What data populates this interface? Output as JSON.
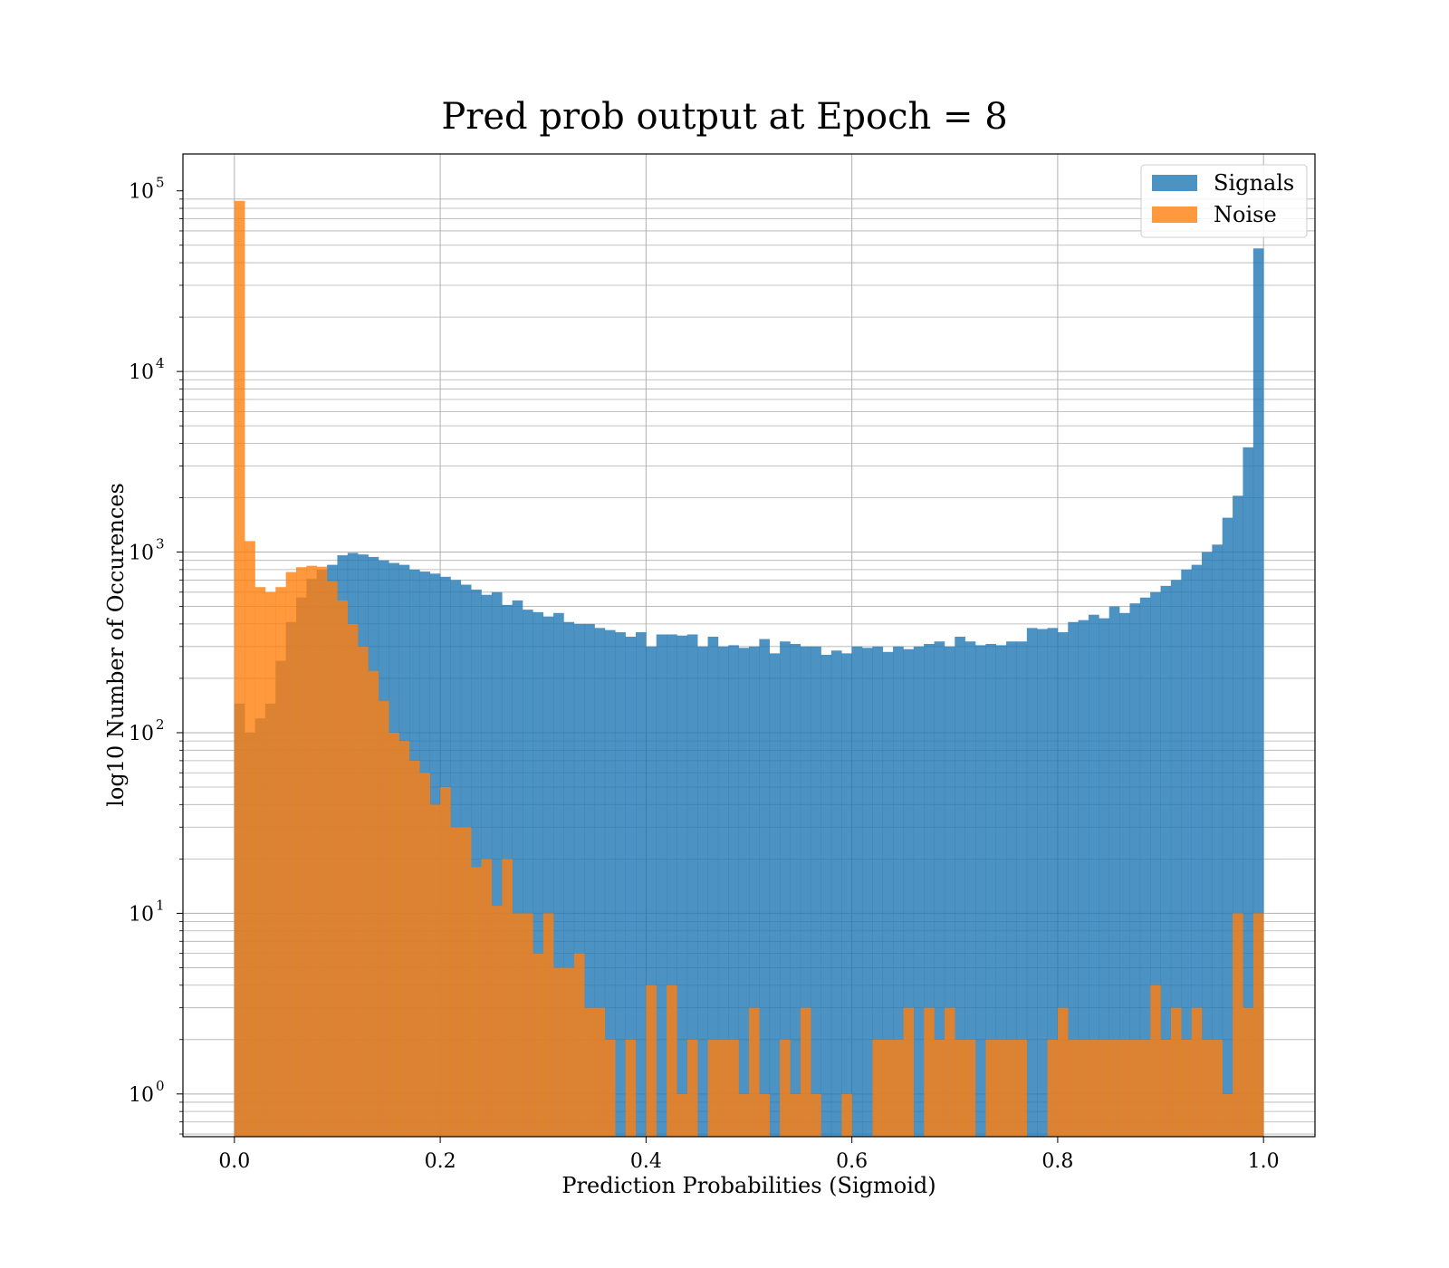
{
  "chart_data": {
    "type": "bar",
    "title": "Pred prob output at Epoch = 8",
    "xlabel": "Prediction Probabilities (Sigmoid)",
    "ylabel": "log10 Number of Occurences",
    "xlim": [
      -0.05,
      1.05
    ],
    "ylim": [
      0.58,
      160000
    ],
    "yscale": "log",
    "grid": true,
    "bins": 100,
    "bin_range": [
      0,
      1
    ],
    "legend_position": "top-right",
    "x_ticks": [
      "0.0",
      "0.2",
      "0.4",
      "0.6",
      "0.8",
      "1.0"
    ],
    "y_ticks": [
      {
        "base": "10",
        "exp": "0"
      },
      {
        "base": "10",
        "exp": "1"
      },
      {
        "base": "10",
        "exp": "2"
      },
      {
        "base": "10",
        "exp": "3"
      },
      {
        "base": "10",
        "exp": "4"
      },
      {
        "base": "10",
        "exp": "5"
      }
    ],
    "colors": {
      "signals": "#1f77b4",
      "noise": "#ff7f0e"
    },
    "series": [
      {
        "name": "Signals",
        "values": [
          145,
          100,
          120,
          145,
          250,
          410,
          560,
          710,
          800,
          850,
          960,
          990,
          970,
          940,
          900,
          870,
          850,
          800,
          780,
          760,
          730,
          700,
          660,
          620,
          580,
          600,
          510,
          540,
          480,
          465,
          440,
          460,
          410,
          400,
          400,
          380,
          370,
          360,
          340,
          360,
          300,
          350,
          350,
          345,
          350,
          300,
          340,
          300,
          305,
          295,
          300,
          330,
          275,
          320,
          310,
          300,
          300,
          270,
          285,
          275,
          300,
          295,
          300,
          280,
          300,
          290,
          300,
          310,
          320,
          300,
          340,
          320,
          305,
          310,
          305,
          320,
          320,
          380,
          375,
          380,
          360,
          410,
          420,
          450,
          430,
          500,
          460,
          520,
          560,
          600,
          650,
          700,
          800,
          850,
          1000,
          1100,
          1550,
          2050,
          3800,
          48000
        ]
      },
      {
        "name": "Noise",
        "values": [
          88000,
          1150,
          640,
          600,
          640,
          775,
          825,
          840,
          830,
          690,
          540,
          400,
          300,
          220,
          150,
          100,
          90,
          70,
          60,
          40,
          50,
          30,
          30,
          18,
          20,
          11,
          20,
          10,
          10,
          6,
          10,
          5,
          5,
          6,
          3,
          3,
          2,
          0,
          2,
          0,
          4,
          0,
          4,
          1,
          2,
          0,
          2,
          2,
          2,
          1,
          3,
          1,
          0,
          2,
          1,
          3,
          1,
          0,
          0,
          1,
          0,
          0,
          2,
          2,
          2,
          3,
          0,
          3,
          2,
          3,
          2,
          2,
          0,
          2,
          2,
          2,
          2,
          0,
          0,
          2,
          3,
          2,
          2,
          2,
          2,
          2,
          2,
          2,
          2,
          4,
          2,
          3,
          2,
          3,
          2,
          2,
          1,
          10,
          3,
          10
        ]
      }
    ]
  }
}
